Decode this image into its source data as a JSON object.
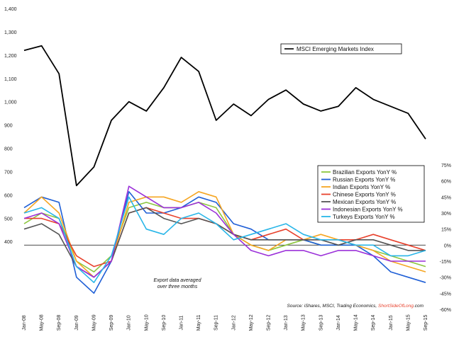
{
  "chart_data": {
    "type": "line",
    "x": [
      "Jan-08",
      "May-08",
      "Sep-08",
      "Jan-09",
      "May-09",
      "Sep-09",
      "Jan-10",
      "May-10",
      "Sep-10",
      "Jan-11",
      "May-11",
      "Sep-11",
      "Jan-12",
      "May-12",
      "Sep-12",
      "Jan-13",
      "May-13",
      "Sep-13",
      "Jan-14",
      "May-14",
      "Sep-14",
      "Jan-15",
      "May-15",
      "Sep-15"
    ],
    "left_axis": {
      "ticks": [
        "400",
        "500",
        "600",
        "700",
        "800",
        "900",
        "1,000",
        "1,100",
        "1,200",
        "1,300",
        "1,400"
      ],
      "ylim": [
        100,
        1400
      ]
    },
    "right_axis": {
      "ticks": [
        "75%",
        "60%",
        "45%",
        "30%",
        "15%",
        "0%",
        "-15%",
        "-30%",
        "-45%",
        "-60%"
      ],
      "ylim": [
        -60,
        75
      ]
    },
    "index_series": {
      "name": "MSCI Emerging Markets Index",
      "color": "#000000",
      "values": [
        1220,
        1240,
        1120,
        640,
        720,
        920,
        1000,
        960,
        1060,
        1190,
        1130,
        920,
        990,
        940,
        1010,
        1050,
        990,
        960,
        980,
        1060,
        1010,
        980,
        950,
        840
      ]
    },
    "export_series": [
      {
        "name": "Brazilian Exports YonY %",
        "color": "#8dc63f",
        "values": [
          20,
          30,
          25,
          -15,
          -25,
          -10,
          35,
          40,
          35,
          35,
          40,
          35,
          10,
          0,
          -5,
          0,
          5,
          0,
          0,
          0,
          -5,
          -10,
          -15,
          -20
        ]
      },
      {
        "name": "Russian Exports YonY %",
        "color": "#1f5fd6",
        "values": [
          35,
          45,
          40,
          -30,
          -45,
          -15,
          50,
          30,
          30,
          35,
          45,
          40,
          20,
          15,
          5,
          5,
          5,
          0,
          0,
          0,
          -10,
          -25,
          -30,
          -35
        ]
      },
      {
        "name": "Indian Exports YonY %",
        "color": "#f5a623",
        "values": [
          30,
          45,
          30,
          -15,
          -30,
          -15,
          40,
          45,
          45,
          40,
          50,
          45,
          10,
          0,
          -5,
          5,
          5,
          10,
          5,
          0,
          -5,
          -15,
          -20,
          -25
        ]
      },
      {
        "name": "Chinese Exports YonY %",
        "color": "#e8412c",
        "values": [
          25,
          25,
          20,
          -10,
          -20,
          -15,
          30,
          35,
          30,
          25,
          25,
          20,
          10,
          5,
          10,
          15,
          5,
          5,
          5,
          5,
          10,
          5,
          0,
          -5
        ]
      },
      {
        "name": "Mexican Exports YonY %",
        "color": "#555555",
        "values": [
          15,
          20,
          10,
          -20,
          -30,
          -15,
          30,
          35,
          25,
          20,
          25,
          20,
          10,
          5,
          5,
          5,
          5,
          5,
          0,
          5,
          5,
          0,
          -5,
          -5
        ]
      },
      {
        "name": "Indonesian Exports YonY %",
        "color": "#9b30d9",
        "values": [
          25,
          30,
          20,
          -20,
          -30,
          -15,
          55,
          45,
          35,
          35,
          40,
          30,
          10,
          -5,
          -10,
          -5,
          -5,
          -10,
          -5,
          -5,
          -10,
          -15,
          -15,
          -15
        ]
      },
      {
        "name": "Turkeys Exports YonY %",
        "color": "#29b6e8",
        "values": [
          30,
          35,
          25,
          -20,
          -35,
          -10,
          45,
          15,
          10,
          25,
          30,
          20,
          5,
          10,
          15,
          20,
          10,
          5,
          5,
          0,
          0,
          -10,
          -10,
          -5
        ]
      }
    ],
    "annotations": [
      "Export data averaged",
      "over three months"
    ],
    "source_label": "Source: iShares, MSCI, Trading Economics, ",
    "source_brand": "ShortSideOfLong",
    "source_suffix": ".com"
  },
  "colors": {
    "zero_line": "#333333",
    "source_brand": "#e8412c"
  }
}
